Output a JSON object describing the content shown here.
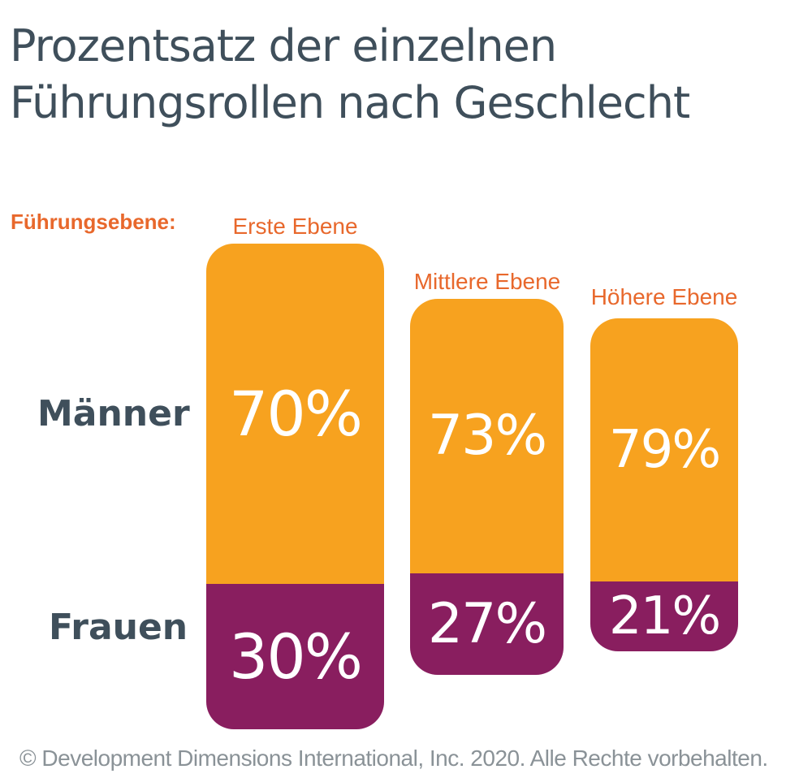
{
  "title_lines": [
    "Prozentsatz der einzelnen",
    "Führungsrollen nach Geschlecht"
  ],
  "level_label": "Führungsebene:",
  "row_labels": {
    "men": "Männer",
    "women": "Frauen"
  },
  "colors": {
    "men": "#f7a21f",
    "women": "#891e5f",
    "accent": "#e8682c",
    "text": "#3f4f5b"
  },
  "chart_data": {
    "type": "bar",
    "stacked": true,
    "categories": [
      "Erste Ebene",
      "Mittlere Ebene",
      "Höhere Ebene"
    ],
    "series": [
      {
        "name": "Männer",
        "values": [
          70,
          73,
          79
        ],
        "labels": [
          "70%",
          "73%",
          "79%"
        ]
      },
      {
        "name": "Frauen",
        "values": [
          30,
          27,
          21
        ],
        "labels": [
          "30%",
          "27%",
          "21%"
        ]
      }
    ],
    "unit": "%"
  },
  "footer": "© Development Dimensions International, Inc. 2020. Alle Rechte vorbehalten."
}
